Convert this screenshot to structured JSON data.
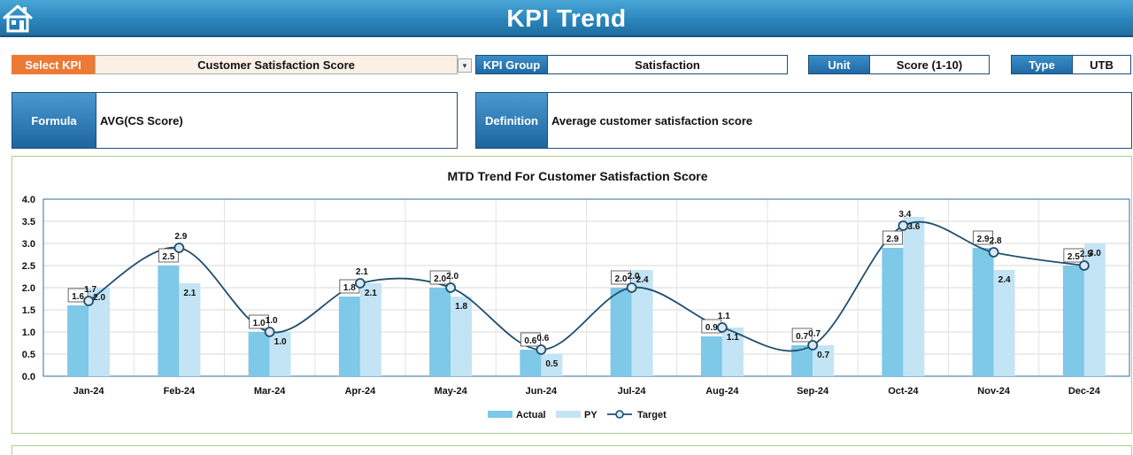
{
  "header": {
    "title": "KPI Trend",
    "home_icon": "home-icon"
  },
  "select_kpi": {
    "label": "Select KPI",
    "value": "Customer Satisfaction Score"
  },
  "kpi_group": {
    "label": "KPI Group",
    "value": "Satisfaction"
  },
  "unit": {
    "label": "Unit",
    "value": "Score (1-10)"
  },
  "type": {
    "label": "Type",
    "value": "UTB"
  },
  "formula": {
    "label": "Formula",
    "value": "AVG(CS Score)"
  },
  "definition": {
    "label": "Definition",
    "value": "Average customer satisfaction score"
  },
  "colors": {
    "actual": "#7ec8e8",
    "py": "#c3e4f4",
    "target": "#1f4e6e",
    "header": "#2b86bd",
    "select_label": "#ec7a35"
  },
  "chart_data": {
    "type": "bar",
    "title": "MTD Trend For Customer Satisfaction Score",
    "categories": [
      "Jan-24",
      "Feb-24",
      "Mar-24",
      "Apr-24",
      "May-24",
      "Jun-24",
      "Jul-24",
      "Aug-24",
      "Sep-24",
      "Oct-24",
      "Nov-24",
      "Dec-24"
    ],
    "series": [
      {
        "name": "Actual",
        "type": "bar",
        "values": [
          1.6,
          2.5,
          1.0,
          1.8,
          2.0,
          0.6,
          2.0,
          0.9,
          0.7,
          2.9,
          2.9,
          2.5
        ]
      },
      {
        "name": "PY",
        "type": "bar",
        "values": [
          2.0,
          2.1,
          1.0,
          2.1,
          1.8,
          0.5,
          2.4,
          1.1,
          0.7,
          3.6,
          2.4,
          3.0
        ]
      },
      {
        "name": "Target",
        "type": "line",
        "values": [
          1.7,
          2.9,
          1.0,
          2.1,
          2.0,
          0.6,
          2.0,
          1.1,
          0.7,
          3.4,
          2.8,
          2.5
        ]
      }
    ],
    "yticks": [
      "0.0",
      "0.5",
      "1.0",
      "1.5",
      "2.0",
      "2.5",
      "3.0",
      "3.5",
      "4.0"
    ],
    "ylim": [
      0,
      4
    ],
    "grid": true,
    "legend": "bottom"
  }
}
